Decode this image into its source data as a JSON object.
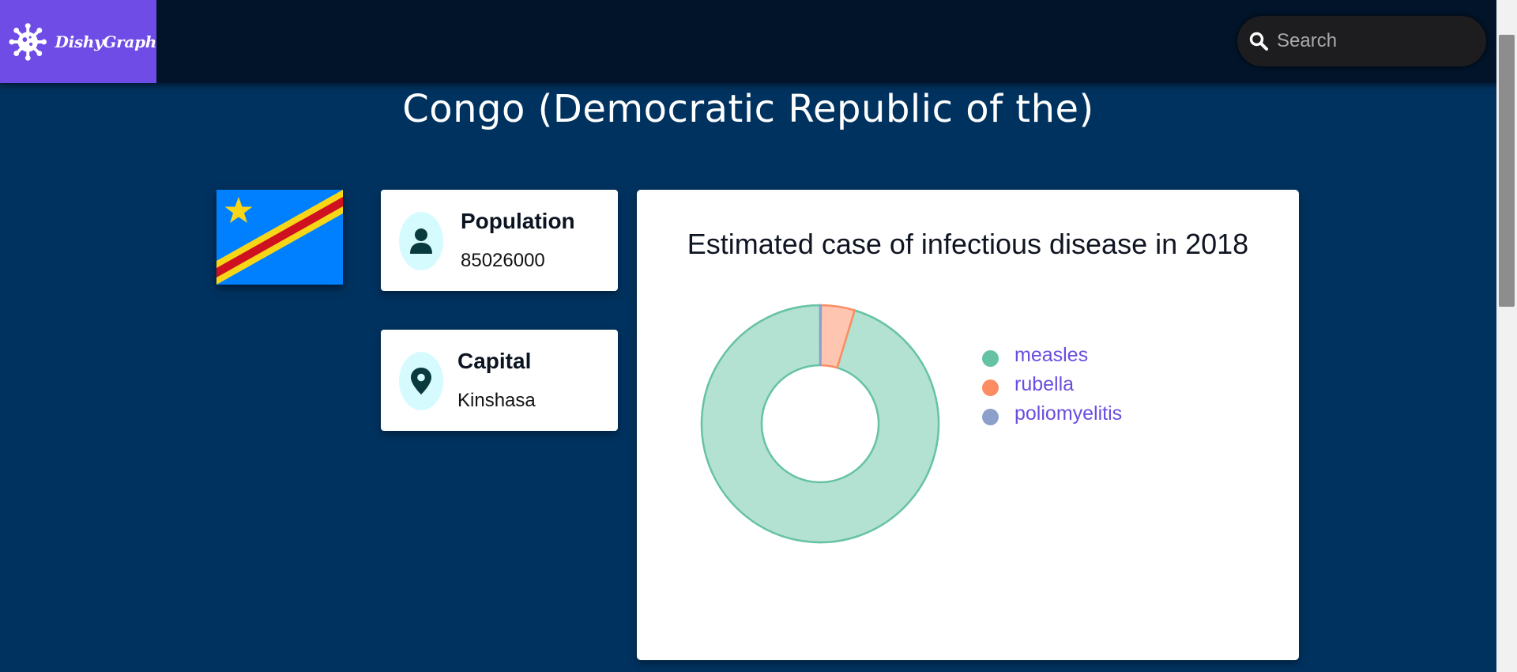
{
  "app": {
    "name": "DishyGraph"
  },
  "search": {
    "placeholder": "Search",
    "value": ""
  },
  "page": {
    "title": "Congo (Democratic Republic of the)"
  },
  "flag": {
    "name": "Democratic Republic of the Congo flag",
    "colors": {
      "blue": "#007fff",
      "yellow": "#f7d618",
      "red": "#ce1021"
    }
  },
  "cards": {
    "population": {
      "label": "Population",
      "value": "85026000",
      "icon": "person-icon"
    },
    "capital": {
      "label": "Capital",
      "value": "Kinshasa",
      "icon": "location-pin-icon"
    }
  },
  "chart_data": {
    "type": "pie",
    "title": "Estimated case of infectious disease in 2018",
    "categories": [
      "measles",
      "rubella",
      "poliomyelitis"
    ],
    "values": [
      95.3,
      4.6,
      0.1
    ],
    "unit": "percent of total (estimated)",
    "donut": true,
    "legend": "right",
    "colors": [
      "#66c2a5",
      "#fc8d62",
      "#8da0cb"
    ]
  },
  "theme": {
    "background": "#00325f",
    "topbar": "#011429",
    "accent": "#6f4ce6",
    "card": "#ffffff",
    "icon_circle": "#d6fbff"
  }
}
